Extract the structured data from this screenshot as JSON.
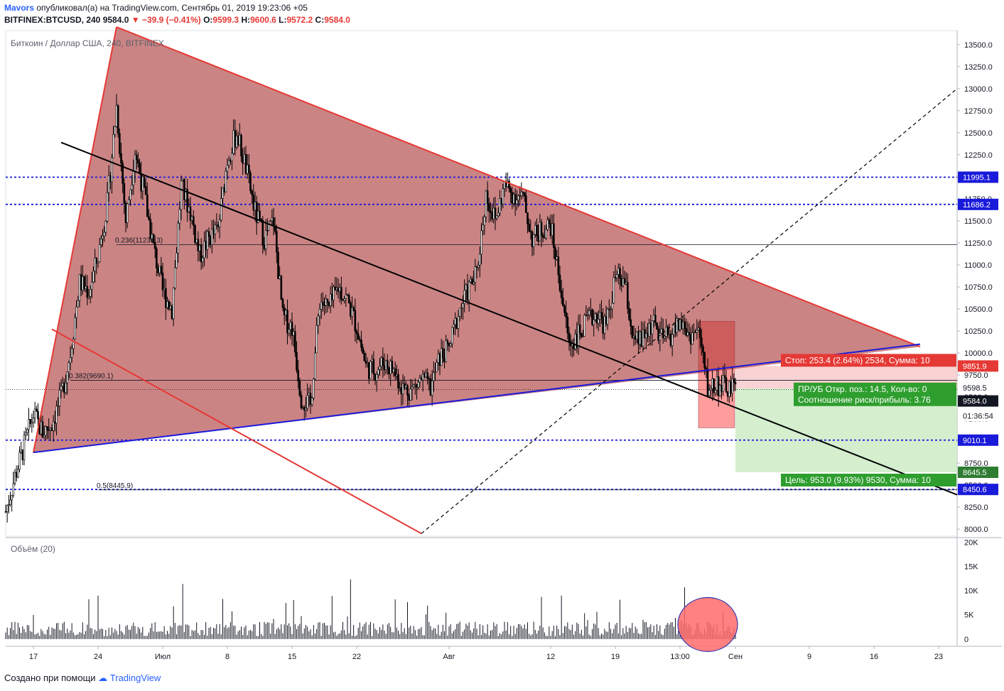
{
  "header": {
    "author": "Mavors",
    "published_text": "опубликовал(а) на TradingView.com, Сентябрь 01, 2019 19:23:06 +05",
    "symbol_line": "BITFINEX:BTCUSD, 240",
    "last": "9584.0",
    "change": "−39.9 (−0.41%)",
    "o_label": "O:",
    "o": "9599.3",
    "h_label": "H:",
    "h": "9600.6",
    "l_label": "L:",
    "l": "9572.2",
    "c_label": "C:",
    "c": "9584.0"
  },
  "pane_title": "Биткоин / Доллар США, 240, BITFINEX",
  "volume_title": "Объём (20)",
  "footer": {
    "made_with": "Создано при помощи",
    "brand": "TradingView"
  },
  "colors": {
    "triangle_fill": "#a83232",
    "triangle_edge": "#e53935",
    "blue_line": "#1a1adb",
    "level_dotted": "#1a1adb",
    "stop_zone": "#f8c8c8",
    "target_zone": "#cdebc5",
    "volume_bar": "#131722",
    "volume_circle": "#ff6b6b"
  },
  "chart_data": {
    "type": "candlestick",
    "price_axis": {
      "ylim": [
        7920,
        13660
      ],
      "ticks": [
        8000,
        8250,
        8500,
        8750,
        9000,
        9250,
        9500,
        9750,
        10000,
        10250,
        10500,
        10750,
        11000,
        11250,
        11500,
        11750,
        12000,
        12250,
        12500,
        12750,
        13000,
        13250,
        13500
      ],
      "tick_labels": [
        "8000.0",
        "8250.0",
        "8500.0",
        "8750.0",
        "9000.0",
        "9250.0",
        "9500.0",
        "9750.0",
        "10000.0",
        "10250.0",
        "10500.0",
        "10750.0",
        "11000.0",
        "11250.0",
        "11500.0",
        "11750.0",
        "12000.0",
        "12250.0",
        "12500.0",
        "12750.0",
        "13000.0",
        "13250.0",
        "13500.0"
      ]
    },
    "volume_axis": {
      "ylim": [
        -900,
        20500
      ],
      "ticks": [
        0,
        5000,
        10000,
        15000,
        20000
      ],
      "tick_labels": [
        "0",
        "5K",
        "10K",
        "15K",
        "20K"
      ]
    },
    "time_axis": {
      "xlim": [
        "2019-06-14",
        "2019-09-25"
      ],
      "ticks": [
        "2019-06-17",
        "2019-06-24",
        "2019-07-01",
        "2019-07-08",
        "2019-07-15",
        "2019-07-22",
        "2019-08-01",
        "2019-08-12",
        "2019-08-19",
        "2019-08-26",
        "2019-09-01",
        "2019-09-09",
        "2019-09-16",
        "2019-09-23"
      ],
      "tick_labels": [
        "17",
        "24",
        "Июл",
        "8",
        "15",
        "22",
        "Авг",
        "12",
        "19",
        "13:00",
        "Сен",
        "9",
        "16",
        "23"
      ]
    },
    "price_path": [
      [
        "2019-06-14",
        8200
      ],
      [
        "2019-06-15",
        8600
      ],
      [
        "2019-06-16",
        8950
      ],
      [
        "2019-06-17",
        9300
      ],
      [
        "2019-06-18",
        9100
      ],
      [
        "2019-06-19",
        9200
      ],
      [
        "2019-06-20",
        9500
      ],
      [
        "2019-06-21",
        10000
      ],
      [
        "2019-06-22",
        10800
      ],
      [
        "2019-06-23",
        10700
      ],
      [
        "2019-06-24",
        11100
      ],
      [
        "2019-06-25",
        11700
      ],
      [
        "2019-06-26",
        12800
      ],
      [
        "2019-06-27",
        11500
      ],
      [
        "2019-06-28",
        12300
      ],
      [
        "2019-06-29",
        11800
      ],
      [
        "2019-06-30",
        11200
      ],
      [
        "2019-07-01",
        10700
      ],
      [
        "2019-07-02",
        10500
      ],
      [
        "2019-07-03",
        11900
      ],
      [
        "2019-07-04",
        11600
      ],
      [
        "2019-07-05",
        11100
      ],
      [
        "2019-07-06",
        11300
      ],
      [
        "2019-07-07",
        11400
      ],
      [
        "2019-07-08",
        12200
      ],
      [
        "2019-07-09",
        12500
      ],
      [
        "2019-07-10",
        12100
      ],
      [
        "2019-07-11",
        11600
      ],
      [
        "2019-07-12",
        11300
      ],
      [
        "2019-07-13",
        11500
      ],
      [
        "2019-07-14",
        10400
      ],
      [
        "2019-07-15",
        10300
      ],
      [
        "2019-07-16",
        9500
      ],
      [
        "2019-07-17",
        9400
      ],
      [
        "2019-07-18",
        10600
      ],
      [
        "2019-07-19",
        10500
      ],
      [
        "2019-07-20",
        10750
      ],
      [
        "2019-07-21",
        10600
      ],
      [
        "2019-07-22",
        10300
      ],
      [
        "2019-07-23",
        9850
      ],
      [
        "2019-07-24",
        9800
      ],
      [
        "2019-07-25",
        9900
      ],
      [
        "2019-07-26",
        9800
      ],
      [
        "2019-07-27",
        9600
      ],
      [
        "2019-07-28",
        9580
      ],
      [
        "2019-07-29",
        9700
      ],
      [
        "2019-07-30",
        9600
      ],
      [
        "2019-07-31",
        9950
      ],
      [
        "2019-08-01",
        10050
      ],
      [
        "2019-08-02",
        10450
      ],
      [
        "2019-08-03",
        10700
      ],
      [
        "2019-08-04",
        10900
      ],
      [
        "2019-08-05",
        11800
      ],
      [
        "2019-08-06",
        11500
      ],
      [
        "2019-08-07",
        11900
      ],
      [
        "2019-08-08",
        11800
      ],
      [
        "2019-08-09",
        11750
      ],
      [
        "2019-08-10",
        11300
      ],
      [
        "2019-08-11",
        11400
      ],
      [
        "2019-08-12",
        11450
      ],
      [
        "2019-08-13",
        10800
      ],
      [
        "2019-08-14",
        10100
      ],
      [
        "2019-08-15",
        10200
      ],
      [
        "2019-08-16",
        10350
      ],
      [
        "2019-08-17",
        10450
      ],
      [
        "2019-08-18",
        10300
      ],
      [
        "2019-08-19",
        10850
      ],
      [
        "2019-08-20",
        10800
      ],
      [
        "2019-08-21",
        10100
      ],
      [
        "2019-08-22",
        10150
      ],
      [
        "2019-08-23",
        10350
      ],
      [
        "2019-08-24",
        10150
      ],
      [
        "2019-08-25",
        10200
      ],
      [
        "2019-08-26",
        10350
      ],
      [
        "2019-08-27",
        10200
      ],
      [
        "2019-08-28",
        10250
      ],
      [
        "2019-08-29",
        9600
      ],
      [
        "2019-08-30",
        9650
      ],
      [
        "2019-08-31",
        9600
      ],
      [
        "2019-09-01",
        9584
      ]
    ],
    "trendlines": [
      {
        "from": [
          "2019-06-17",
          8870
        ],
        "to": [
          "2019-06-26",
          13700
        ],
        "color": "#e53935"
      },
      {
        "from": [
          "2019-06-26",
          13700
        ],
        "to": [
          "2019-09-21",
          10070
        ],
        "color": "#e53935"
      },
      {
        "from": [
          "2019-06-17",
          8870
        ],
        "to": [
          "2019-09-21",
          10100
        ],
        "color": "#1a1adb"
      },
      {
        "from": [
          "2019-06-19",
          10270
        ],
        "to": [
          "2019-07-29",
          7950
        ],
        "color": "#e53935"
      },
      {
        "from": [
          "2019-06-20",
          12390
        ],
        "to": [
          "2019-09-25",
          8390
        ],
        "color": "#000000"
      },
      {
        "from": [
          "2019-07-29",
          7950
        ],
        "to": [
          "2019-09-25",
          13000
        ],
        "color": "#000000",
        "dash": true
      }
    ],
    "horizontal_levels": [
      {
        "value": 11995.1,
        "label": "11995.1"
      },
      {
        "value": 11686.2,
        "label": "11686.2"
      },
      {
        "value": 9010.1,
        "label": "9010.1"
      },
      {
        "value": 8450.6,
        "label": "8450.6"
      }
    ],
    "fib_levels": [
      {
        "value": 11230.3,
        "label": "0.236(11230.3)"
      },
      {
        "value": 9690.1,
        "label": "0.382(9690.1)"
      },
      {
        "value": 8445.9,
        "label": "0.5(8445.9)"
      }
    ],
    "position": {
      "entry": 9598.5,
      "entry_label": "9598.5",
      "stop": 9851.9,
      "stop_label": "9851.9",
      "target": 8645.5,
      "target_label": "8645.5",
      "last": 9584.0,
      "last_label": "9584.0",
      "countdown": "01:36:54",
      "stop_text": "Стоп: 253.4 (2.64%) 2534, Сумма: 10",
      "pnl_text": "ПР/УБ Откр. поз.: 14.5, Кол-во: 0",
      "ratio_text": "Соотношение риск/прибыль: 3.76",
      "target_text": "Цель: 953.0 (9.93%) 9530, Сумма: 10"
    }
  }
}
